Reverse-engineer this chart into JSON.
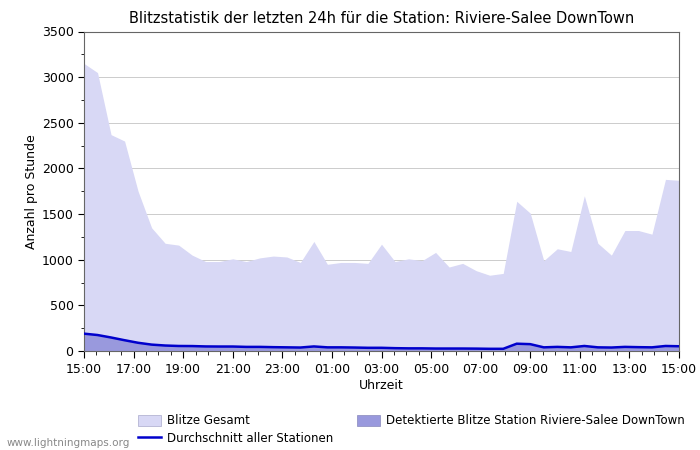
{
  "title": "Blitzstatistik der letzten 24h für die Station: Riviere-Salee DownTown",
  "xlabel": "Uhrzeit",
  "ylabel": "Anzahl pro Stunde",
  "watermark": "www.lightningmaps.org",
  "ylim": [
    0,
    3500
  ],
  "yticks": [
    0,
    500,
    1000,
    1500,
    2000,
    2500,
    3000,
    3500
  ],
  "x_labels": [
    "15:00",
    "17:00",
    "19:00",
    "21:00",
    "23:00",
    "01:00",
    "03:00",
    "05:00",
    "07:00",
    "09:00",
    "11:00",
    "13:00",
    "15:00"
  ],
  "color_gesamt": "#d8d8f5",
  "color_station": "#9999dd",
  "color_avg": "#0000cc",
  "legend_gesamt": "Blitze Gesamt",
  "legend_station": "Detektierte Blitze Station Riviere-Salee DownTown",
  "legend_avg": "Durchschnitt aller Stationen",
  "gesamt": [
    3150,
    3050,
    2370,
    2300,
    1750,
    1350,
    1180,
    1160,
    1050,
    980,
    980,
    1010,
    980,
    1020,
    1040,
    1030,
    970,
    1200,
    950,
    970,
    970,
    960,
    1170,
    980,
    1010,
    990,
    1080,
    920,
    960,
    880,
    830,
    850,
    1640,
    1510,
    990,
    1120,
    1090,
    1700,
    1180,
    1050,
    1320,
    1320,
    1280,
    1880,
    1870
  ],
  "station": [
    200,
    180,
    155,
    130,
    100,
    80,
    65,
    60,
    58,
    52,
    52,
    52,
    47,
    47,
    45,
    42,
    40,
    52,
    42,
    42,
    40,
    37,
    37,
    33,
    31,
    31,
    29,
    29,
    29,
    28,
    26,
    26,
    85,
    78,
    42,
    47,
    42,
    58,
    42,
    40,
    47,
    45,
    42,
    58,
    52
  ],
  "avg": [
    190,
    175,
    148,
    118,
    90,
    70,
    60,
    55,
    54,
    50,
    49,
    49,
    45,
    45,
    42,
    40,
    38,
    50,
    40,
    40,
    38,
    35,
    35,
    31,
    29,
    29,
    27,
    27,
    27,
    26,
    24,
    24,
    80,
    75,
    40,
    45,
    40,
    55,
    40,
    38,
    45,
    42,
    40,
    55,
    52
  ]
}
